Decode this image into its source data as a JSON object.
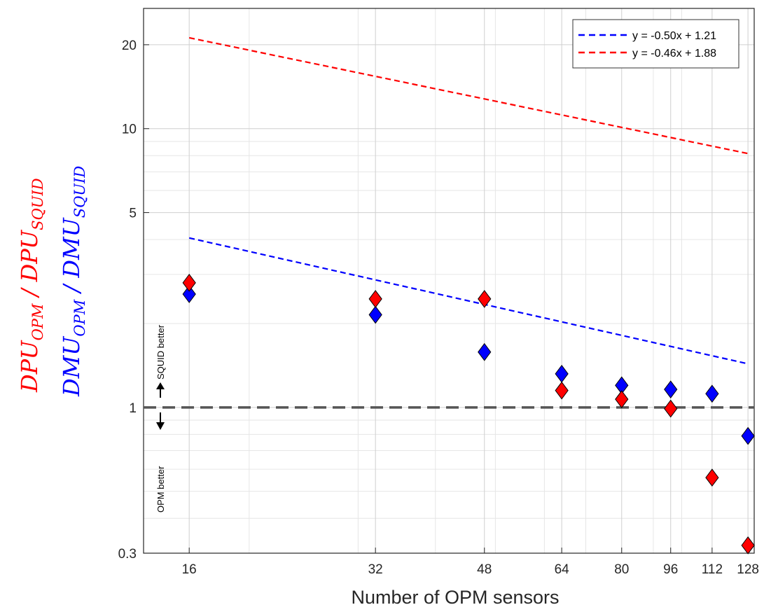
{
  "chart_data": {
    "type": "scatter",
    "xlabel": "Number of OPM sensors",
    "ylabel_red": {
      "main1": "DPU",
      "sub1": "OPM",
      "sep": " / ",
      "main2": "DPU",
      "sub2": "SQUID"
    },
    "ylabel_blue": {
      "main1": "DMU",
      "sub1": "OPM",
      "sep": " / ",
      "main2": "DMU",
      "sub2": "SQUID"
    },
    "x_scale": "log",
    "y_scale": "log",
    "xlim": [
      13.5,
      131
    ],
    "ylim": [
      0.3,
      27
    ],
    "xticks": [
      16,
      32,
      48,
      64,
      80,
      96,
      112,
      128
    ],
    "yticks": [
      0.3,
      1,
      5,
      10,
      20
    ],
    "ytick_labels": [
      "0.3",
      "1",
      "5",
      "10",
      "20"
    ],
    "grid": true,
    "legend_position": "top-right",
    "reference_line": {
      "y": 1,
      "style": "dashed",
      "color": "#555555"
    },
    "annotations": {
      "up": "SQUID better",
      "down": "OPM better"
    },
    "series": [
      {
        "name": "DMU",
        "color": "#0000ff",
        "marker": "diamond",
        "x": [
          16,
          32,
          48,
          64,
          80,
          96,
          112,
          128
        ],
        "y": [
          2.55,
          2.15,
          1.58,
          1.32,
          1.2,
          1.16,
          1.12,
          0.79
        ]
      },
      {
        "name": "DPU",
        "color": "#ff0000",
        "marker": "diamond",
        "x": [
          16,
          32,
          48,
          64,
          80,
          96,
          112,
          128
        ],
        "y": [
          2.8,
          2.45,
          2.45,
          1.15,
          1.07,
          0.99,
          0.56,
          0.32
        ]
      }
    ],
    "fit_lines": [
      {
        "label": "y = -0.50x + 1.21",
        "color": "#0000ff",
        "slope": -0.5,
        "intercept": 1.21,
        "x_range": [
          16,
          128
        ]
      },
      {
        "label": "y = -0.46x + 1.88",
        "color": "#ff0000",
        "slope": -0.46,
        "intercept": 1.88,
        "x_range": [
          16,
          128
        ]
      }
    ]
  }
}
